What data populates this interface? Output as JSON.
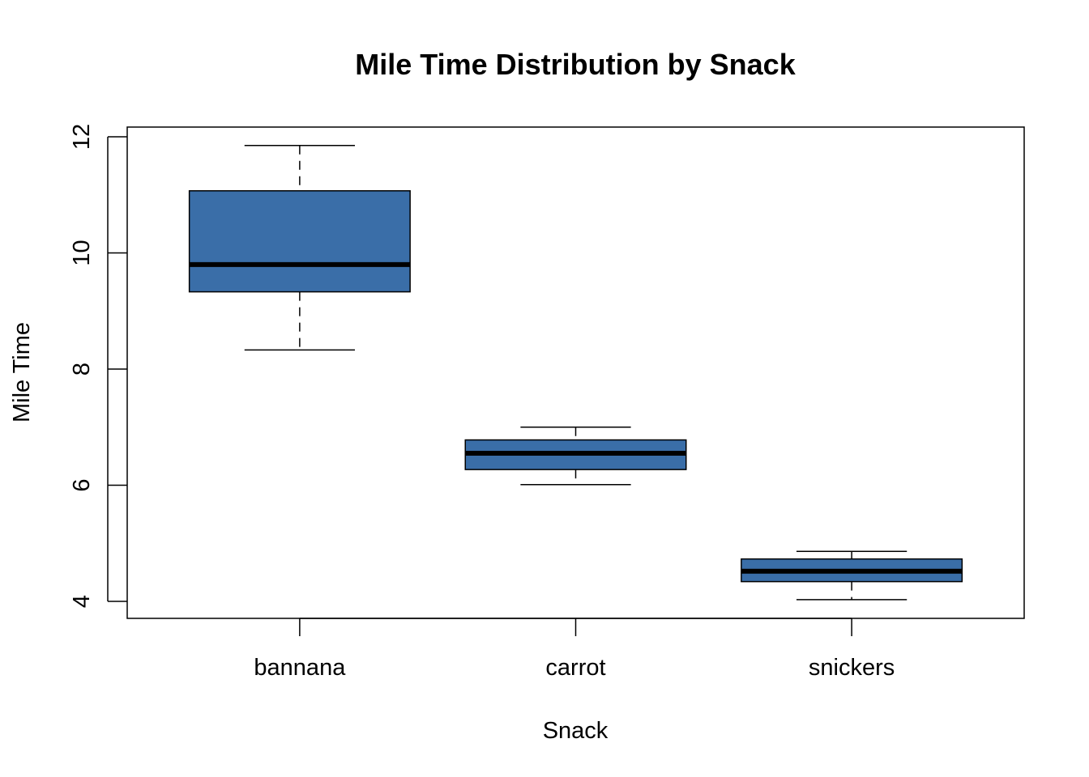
{
  "chart_data": {
    "type": "boxplot",
    "title": "Mile Time Distribution by Snack",
    "xlabel": "Snack",
    "ylabel": "Mile Time",
    "ylim": [
      3.7,
      12.15
    ],
    "yticks": [
      4,
      6,
      8,
      10,
      12
    ],
    "ytick_labels": [
      "4",
      "6",
      "8",
      "10",
      "12"
    ],
    "grid": false,
    "box_color": "#3A6EA8",
    "categories": [
      "bannana",
      "carrot",
      "snickers"
    ],
    "boxes": [
      {
        "name": "bannana",
        "min": 8.33,
        "q1": 9.33,
        "median": 9.8,
        "q3": 11.07,
        "max": 11.85
      },
      {
        "name": "carrot",
        "min": 6.01,
        "q1": 6.27,
        "median": 6.55,
        "q3": 6.78,
        "max": 7.0
      },
      {
        "name": "snickers",
        "min": 4.03,
        "q1": 4.34,
        "median": 4.52,
        "q3": 4.73,
        "max": 4.86
      }
    ]
  }
}
